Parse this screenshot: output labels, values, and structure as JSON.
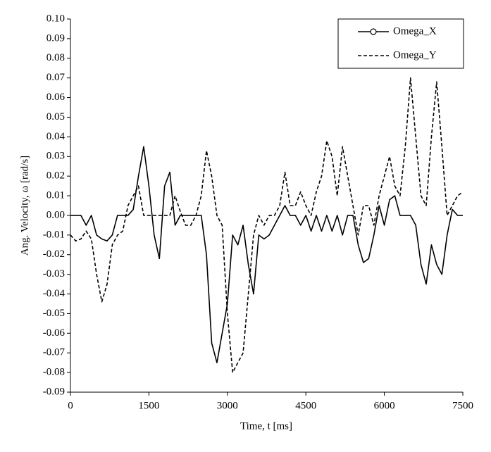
{
  "chart_data": {
    "type": "line",
    "xlabel": "Time, t [ms]",
    "ylabel": "Ang. Velocity, ω [rad/s]",
    "x": [
      0,
      100,
      200,
      300,
      400,
      500,
      600,
      700,
      800,
      900,
      1000,
      1100,
      1200,
      1300,
      1400,
      1500,
      1600,
      1700,
      1800,
      1900,
      2000,
      2100,
      2200,
      2300,
      2400,
      2500,
      2600,
      2700,
      2800,
      2900,
      3000,
      3100,
      3200,
      3300,
      3400,
      3500,
      3600,
      3700,
      3800,
      3900,
      4000,
      4100,
      4200,
      4300,
      4400,
      4500,
      4600,
      4700,
      4800,
      4900,
      5000,
      5100,
      5200,
      5300,
      5400,
      5500,
      5600,
      5700,
      5800,
      5900,
      6000,
      6100,
      6200,
      6300,
      6400,
      6500,
      6600,
      6700,
      6800,
      6900,
      7000,
      7100,
      7200,
      7300,
      7400,
      7500
    ],
    "series": [
      {
        "name": "Omega_X",
        "color": "#000000",
        "style": "solid",
        "marker": "circle",
        "values": [
          0,
          0,
          0,
          -0.005,
          0,
          -0.01,
          -0.012,
          -0.013,
          -0.01,
          0,
          0,
          0,
          0.003,
          0.02,
          0.035,
          0.015,
          -0.01,
          -0.022,
          0.015,
          0.022,
          -0.005,
          0,
          0,
          0,
          0,
          0,
          -0.02,
          -0.065,
          -0.075,
          -0.06,
          -0.045,
          -0.01,
          -0.015,
          -0.005,
          -0.025,
          -0.04,
          -0.01,
          -0.012,
          -0.01,
          -0.005,
          0,
          0.005,
          0,
          0,
          -0.005,
          0,
          -0.008,
          0,
          -0.008,
          0,
          -0.008,
          0,
          -0.01,
          0,
          0,
          -0.015,
          -0.024,
          -0.022,
          -0.01,
          0.005,
          -0.005,
          0.008,
          0.01,
          0,
          0,
          0,
          -0.005,
          -0.025,
          -0.035,
          -0.015,
          -0.025,
          -0.03,
          -0.01,
          0.003,
          0,
          0
        ]
      },
      {
        "name": "Omega_Y",
        "color": "#000000",
        "style": "dashed",
        "values": [
          -0.01,
          -0.013,
          -0.012,
          -0.008,
          -0.012,
          -0.03,
          -0.044,
          -0.035,
          -0.015,
          -0.01,
          -0.008,
          0.005,
          0.01,
          0.015,
          0,
          0,
          0,
          0,
          0,
          0,
          0.01,
          0.002,
          -0.005,
          -0.005,
          0,
          0.01,
          0.033,
          0.02,
          0,
          -0.005,
          -0.05,
          -0.08,
          -0.075,
          -0.07,
          -0.04,
          -0.01,
          0,
          -0.005,
          0,
          0,
          0.005,
          0.022,
          0.005,
          0.005,
          0.012,
          0.005,
          0,
          0.012,
          0.02,
          0.038,
          0.03,
          0.01,
          0.035,
          0.02,
          0.005,
          -0.01,
          0.005,
          0.005,
          -0.005,
          0.01,
          0.02,
          0.03,
          0.015,
          0.01,
          0.035,
          0.07,
          0.04,
          0.01,
          0.005,
          0.04,
          0.068,
          0.035,
          0,
          0.005,
          0.01,
          0.012
        ]
      }
    ],
    "xlim": [
      0,
      7500
    ],
    "xticks": [
      0,
      1500,
      3000,
      4500,
      6000,
      7500
    ],
    "ylim": [
      -0.09,
      0.1
    ],
    "yticks": [
      {
        "value": -0.09,
        "label": "-0.09"
      },
      {
        "value": -0.08,
        "label": "-0.08"
      },
      {
        "value": -0.07,
        "label": "-0.07"
      },
      {
        "value": -0.06,
        "label": "-0.06"
      },
      {
        "value": -0.05,
        "label": "-0.05"
      },
      {
        "value": -0.04,
        "label": "-0.04"
      },
      {
        "value": -0.03,
        "label": "-0.03"
      },
      {
        "value": -0.02,
        "label": "-0.02"
      },
      {
        "value": -0.01,
        "label": "-0.01"
      },
      {
        "value": 0,
        "label": "0.00"
      },
      {
        "value": 0.01,
        "label": "0.01"
      },
      {
        "value": 0.02,
        "label": "0.02"
      },
      {
        "value": 0.03,
        "label": "0.03"
      },
      {
        "value": 0.04,
        "label": "0.04"
      },
      {
        "value": 0.05,
        "label": "0.05"
      },
      {
        "value": 0.06,
        "label": "0.06"
      },
      {
        "value": 0.07,
        "label": "0.07"
      },
      {
        "value": 0.08,
        "label": "0.08"
      },
      {
        "value": 0.09,
        "label": "0.09"
      },
      {
        "value": 0.1,
        "label": "0.10"
      }
    ],
    "grid": false,
    "legend": "upper right"
  }
}
